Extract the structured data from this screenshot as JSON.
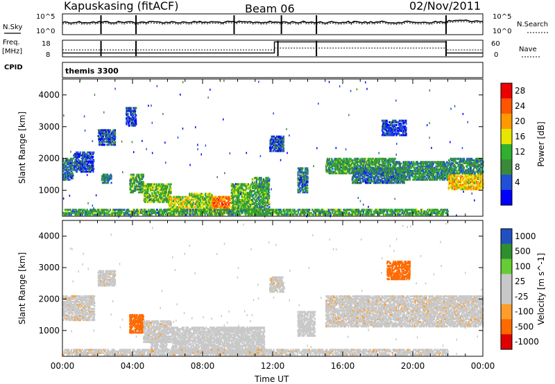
{
  "header": {
    "station": "Kapuskasing (fitACF)",
    "beam": "Beam 06",
    "date": "02/Nov/2011"
  },
  "left_labels": {
    "nsky": "N.Sky",
    "freq": "Freq.",
    "mhz": "[MHz]",
    "cpid": "CPID"
  },
  "right_labels": {
    "nsearch": "N.Search",
    "nave": "Nave"
  },
  "cpid_text": "themis 3300",
  "colors": {
    "power_scale": [
      "#0000ff",
      "#2050d8",
      "#3a8a3a",
      "#2fb02f",
      "#e6e600",
      "#ff9900",
      "#ff5500",
      "#ee0000"
    ],
    "velocity_scale": [
      "#e00000",
      "#ff6a00",
      "#ff9d2a",
      "#c8c8c8",
      "#c8c8c8",
      "#66cc33",
      "#2f8f2f",
      "#2050c0"
    ],
    "gray_scatter": "#c8c8c8"
  },
  "chart_data": [
    {
      "type": "line",
      "name": "noise",
      "title": "",
      "y_ticks_left": [
        "10^5",
        "10^0"
      ],
      "y_ticks_right": [
        "10^5",
        "10^0"
      ],
      "note": "N.Sky (solid) and N.Search (dotted) noise levels vs time"
    },
    {
      "type": "line",
      "name": "freq_nave",
      "y_ticks_left": [
        "18",
        "8"
      ],
      "y_ticks_right": [
        "60",
        "0"
      ],
      "freq_segments": [
        {
          "x0": 0,
          "x1": 12.1,
          "value": 10.3
        },
        {
          "x0": 12.1,
          "x1": 21.9,
          "value": 17.0
        },
        {
          "x0": 21.9,
          "x1": 24,
          "value": 10.3
        }
      ],
      "nave_segments": [
        {
          "x0": 0,
          "x1": 12.1,
          "value": 25
        },
        {
          "x0": 12.1,
          "x1": 21.9,
          "value": 32
        },
        {
          "x0": 21.9,
          "x1": 24,
          "value": 25
        }
      ]
    },
    {
      "type": "heatmap",
      "name": "power",
      "ylabel": "Slant Range [km]",
      "y_ticks": [
        "4000",
        "3000",
        "2000",
        "1000"
      ],
      "ylim": [
        180,
        4500
      ],
      "colorbar_label": "Power [dB]",
      "colorbar_ticks": [
        "28",
        "24",
        "20",
        "16",
        "12",
        "8",
        "4"
      ],
      "colorbar_range": [
        0,
        32
      ],
      "regions": [
        {
          "t0": 0.0,
          "t1": 0.6,
          "r0": 1300,
          "r1": 2000,
          "p": 8
        },
        {
          "t0": 0.6,
          "t1": 1.8,
          "r0": 1550,
          "r1": 2200,
          "p": 6
        },
        {
          "t0": 2.0,
          "t1": 3.0,
          "r0": 2400,
          "r1": 2900,
          "p": 6
        },
        {
          "t0": 2.2,
          "t1": 2.8,
          "r0": 1200,
          "r1": 1500,
          "p": 10
        },
        {
          "t0": 3.6,
          "t1": 4.2,
          "r0": 3000,
          "r1": 3600,
          "p": 5
        },
        {
          "t0": 3.8,
          "t1": 4.6,
          "r0": 900,
          "r1": 1500,
          "p": 12
        },
        {
          "t0": 4.6,
          "t1": 6.2,
          "r0": 600,
          "r1": 1200,
          "p": 14
        },
        {
          "t0": 6.0,
          "t1": 7.2,
          "r0": 300,
          "r1": 800,
          "p": 18
        },
        {
          "t0": 7.2,
          "t1": 8.5,
          "r0": 300,
          "r1": 900,
          "p": 16
        },
        {
          "t0": 8.5,
          "t1": 9.6,
          "r0": 250,
          "r1": 800,
          "p": 24
        },
        {
          "t0": 9.6,
          "t1": 10.8,
          "r0": 300,
          "r1": 1200,
          "p": 14
        },
        {
          "t0": 10.8,
          "t1": 11.8,
          "r0": 300,
          "r1": 1400,
          "p": 12
        },
        {
          "t0": 11.8,
          "t1": 12.6,
          "r0": 2200,
          "r1": 2700,
          "p": 6
        },
        {
          "t0": 13.4,
          "t1": 14.0,
          "r0": 900,
          "r1": 1700,
          "p": 8
        },
        {
          "t0": 15.0,
          "t1": 19.0,
          "r0": 1500,
          "r1": 2000,
          "p": 12
        },
        {
          "t0": 16.5,
          "t1": 19.5,
          "r0": 1200,
          "r1": 1700,
          "p": 8
        },
        {
          "t0": 19.0,
          "t1": 22.0,
          "r0": 1300,
          "r1": 1900,
          "p": 10
        },
        {
          "t0": 22.0,
          "t1": 24.0,
          "r0": 1000,
          "r1": 1500,
          "p": 20
        },
        {
          "t0": 22.0,
          "t1": 24.0,
          "r0": 1500,
          "r1": 2000,
          "p": 10
        },
        {
          "t0": 18.2,
          "t1": 19.6,
          "r0": 2700,
          "r1": 3200,
          "p": 5
        },
        {
          "t0": 0.0,
          "t1": 22.0,
          "r0": 200,
          "r1": 400,
          "p": 12
        }
      ]
    },
    {
      "type": "heatmap",
      "name": "velocity",
      "ylabel": "Slant Range [km]",
      "y_ticks": [
        "4000",
        "3000",
        "2000",
        "1000"
      ],
      "ylim": [
        180,
        4500
      ],
      "colorbar_label": "Velocity [m s^-1]",
      "colorbar_ticks": [
        "1000",
        "500",
        "100",
        "25",
        "-25",
        "-100",
        "-500",
        "-1000"
      ],
      "regions": [
        {
          "t0": 0.0,
          "t1": 1.8,
          "r0": 1300,
          "r1": 2100,
          "v": 0
        },
        {
          "t0": 2.0,
          "t1": 3.0,
          "r0": 2400,
          "r1": 2900,
          "v": 0
        },
        {
          "t0": 3.8,
          "t1": 4.6,
          "r0": 900,
          "r1": 1500,
          "v": -200
        },
        {
          "t0": 4.6,
          "t1": 6.2,
          "r0": 600,
          "r1": 1300,
          "v": 0
        },
        {
          "t0": 5.0,
          "t1": 6.0,
          "r0": 300,
          "r1": 700,
          "v": 50
        },
        {
          "t0": 6.2,
          "t1": 11.5,
          "r0": 250,
          "r1": 1100,
          "v": 60
        },
        {
          "t0": 11.8,
          "t1": 12.6,
          "r0": 2200,
          "r1": 2700,
          "v": 0
        },
        {
          "t0": 13.4,
          "t1": 14.4,
          "r0": 800,
          "r1": 1600,
          "v": 40
        },
        {
          "t0": 15.0,
          "t1": 24.0,
          "r0": 1100,
          "r1": 2100,
          "v": 0
        },
        {
          "t0": 18.5,
          "t1": 19.8,
          "r0": 2600,
          "r1": 3200,
          "v": -300
        },
        {
          "t0": 0.0,
          "t1": 22.0,
          "r0": 200,
          "r1": 400,
          "v": 0
        }
      ]
    }
  ],
  "x_axis": {
    "ticks": [
      "00:00",
      "04:00",
      "08:00",
      "12:00",
      "16:00",
      "20:00",
      "00:00"
    ],
    "label": "Time UT",
    "range": [
      0,
      24
    ]
  }
}
